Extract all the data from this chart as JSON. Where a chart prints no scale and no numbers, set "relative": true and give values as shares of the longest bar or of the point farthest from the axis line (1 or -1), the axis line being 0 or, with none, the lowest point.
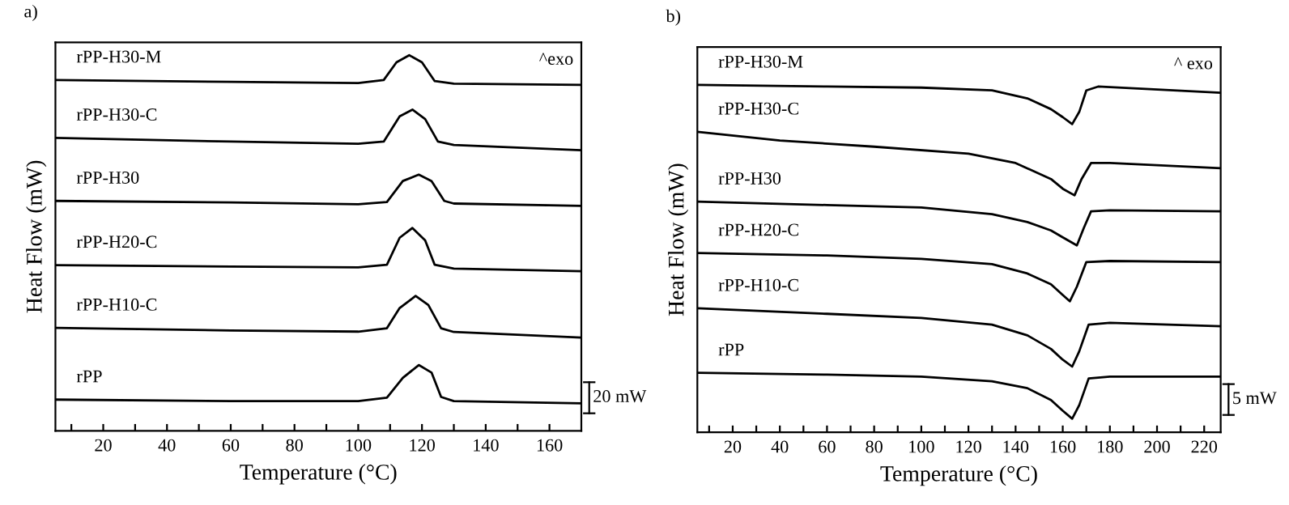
{
  "chart_data": [
    {
      "type": "line",
      "title": "a)",
      "xlabel": "Temperature (°C)",
      "ylabel": "Heat Flow (mW)",
      "relative": true,
      "xlim": [
        5,
        170
      ],
      "xticks": [
        {
          "value": 10,
          "label": null
        },
        20,
        {
          "value": 30,
          "label": null
        },
        40,
        {
          "value": 50,
          "label": null
        },
        60,
        {
          "value": 70,
          "label": null
        },
        80,
        {
          "value": 90,
          "label": null
        },
        100,
        {
          "value": 110,
          "label": null
        },
        120,
        {
          "value": 130,
          "label": null
        },
        140,
        {
          "value": 150,
          "label": null
        },
        160
      ],
      "annotations": [
        "^exo",
        "20 mW"
      ],
      "grid": false,
      "legend": false,
      "marker": "none",
      "line_style": "solid",
      "series": [
        {
          "name": "rPP-H30-M",
          "color": "#000000",
          "x": [
            5,
            60,
            100,
            108,
            112,
            116,
            120,
            124,
            130,
            170
          ],
          "values": [
            0.934,
            0.929,
            0.926,
            0.934,
            0.981,
            1.0,
            0.981,
            0.931,
            0.924,
            0.921
          ]
        },
        {
          "name": "rPP-H30-C",
          "color": "#000000",
          "x": [
            5,
            60,
            100,
            108,
            113,
            117,
            121,
            125,
            130,
            170
          ],
          "values": [
            0.78,
            0.77,
            0.764,
            0.77,
            0.837,
            0.855,
            0.83,
            0.77,
            0.761,
            0.747
          ]
        },
        {
          "name": "rPP-H30",
          "color": "#000000",
          "x": [
            5,
            60,
            100,
            109,
            114,
            119,
            123,
            127,
            130,
            170
          ],
          "values": [
            0.612,
            0.608,
            0.603,
            0.609,
            0.665,
            0.682,
            0.665,
            0.612,
            0.605,
            0.599
          ]
        },
        {
          "name": "rPP-H20-C",
          "color": "#000000",
          "x": [
            5,
            60,
            100,
            109,
            113,
            117,
            121,
            124,
            130,
            170
          ],
          "values": [
            0.441,
            0.437,
            0.435,
            0.442,
            0.514,
            0.54,
            0.507,
            0.442,
            0.432,
            0.425
          ]
        },
        {
          "name": "rPP-H10-C",
          "color": "#000000",
          "x": [
            5,
            60,
            100,
            109,
            113,
            118,
            122,
            126,
            130,
            170
          ],
          "values": [
            0.274,
            0.267,
            0.264,
            0.273,
            0.327,
            0.359,
            0.335,
            0.273,
            0.263,
            0.248
          ]
        },
        {
          "name": "rPP",
          "color": "#000000",
          "x": [
            5,
            60,
            100,
            109,
            114,
            119,
            123,
            126,
            130,
            170
          ],
          "values": [
            0.083,
            0.079,
            0.079,
            0.088,
            0.141,
            0.175,
            0.155,
            0.09,
            0.079,
            0.073
          ]
        }
      ]
    },
    {
      "type": "line",
      "title": "b)",
      "xlabel": "Temperature (°C)",
      "ylabel": "Heat Flow (mW)",
      "relative": true,
      "xlim": [
        5,
        227
      ],
      "xticks": [
        {
          "value": 10,
          "label": null
        },
        20,
        {
          "value": 30,
          "label": null
        },
        40,
        {
          "value": 50,
          "label": null
        },
        60,
        {
          "value": 70,
          "label": null
        },
        80,
        {
          "value": 90,
          "label": null
        },
        100,
        {
          "value": 110,
          "label": null
        },
        120,
        {
          "value": 130,
          "label": null
        },
        140,
        {
          "value": 150,
          "label": null
        },
        160,
        {
          "value": 170,
          "label": null
        },
        180,
        {
          "value": 190,
          "label": null
        },
        200,
        {
          "value": 210,
          "label": null
        },
        220
      ],
      "annotations": [
        "^ exo",
        "5 mW"
      ],
      "grid": false,
      "legend": false,
      "marker": "none",
      "line_style": "solid",
      "series": [
        {
          "name": "rPP-H30-M",
          "color": "#000000",
          "x": [
            5,
            60,
            100,
            130,
            145,
            155,
            160,
            164,
            167,
            170,
            175,
            227
          ],
          "values": [
            1.0,
            0.995,
            0.992,
            0.984,
            0.961,
            0.93,
            0.907,
            0.887,
            0.922,
            0.984,
            0.995,
            0.977
          ]
        },
        {
          "name": "rPP-H30-C",
          "color": "#000000",
          "x": [
            5,
            40,
            80,
            120,
            140,
            155,
            160,
            165,
            168,
            172,
            180,
            227
          ],
          "values": [
            0.865,
            0.84,
            0.822,
            0.802,
            0.775,
            0.729,
            0.701,
            0.682,
            0.729,
            0.775,
            0.775,
            0.76
          ]
        },
        {
          "name": "rPP-H30",
          "color": "#000000",
          "x": [
            5,
            60,
            100,
            130,
            145,
            155,
            160,
            166,
            169,
            172,
            180,
            227
          ],
          "values": [
            0.664,
            0.654,
            0.647,
            0.628,
            0.605,
            0.581,
            0.561,
            0.538,
            0.589,
            0.636,
            0.639,
            0.636
          ]
        },
        {
          "name": "rPP-H20-C",
          "color": "#000000",
          "x": [
            5,
            60,
            100,
            130,
            145,
            155,
            160,
            163,
            166,
            170,
            180,
            227
          ],
          "values": [
            0.516,
            0.509,
            0.499,
            0.484,
            0.457,
            0.426,
            0.395,
            0.377,
            0.419,
            0.49,
            0.493,
            0.49
          ]
        },
        {
          "name": "rPP-H10-C",
          "color": "#000000",
          "x": [
            5,
            60,
            100,
            130,
            145,
            155,
            160,
            164,
            167,
            171,
            180,
            227
          ],
          "values": [
            0.357,
            0.341,
            0.329,
            0.31,
            0.279,
            0.24,
            0.209,
            0.189,
            0.233,
            0.31,
            0.315,
            0.305
          ]
        },
        {
          "name": "rPP",
          "color": "#000000",
          "x": [
            5,
            60,
            100,
            130,
            145,
            155,
            160,
            164,
            167,
            171,
            180,
            227
          ],
          "values": [
            0.171,
            0.166,
            0.16,
            0.147,
            0.127,
            0.093,
            0.062,
            0.039,
            0.078,
            0.155,
            0.16,
            0.16
          ]
        }
      ]
    }
  ]
}
